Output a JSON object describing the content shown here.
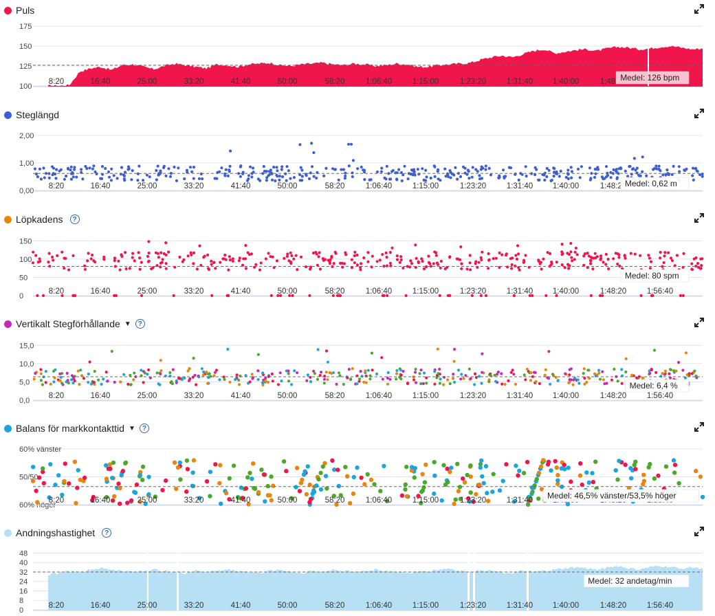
{
  "x_tick_labels": [
    "8:20",
    "16:40",
    "25:00",
    "33:20",
    "41:40",
    "50:00",
    "58:20",
    "1:06:40",
    "1:15:00",
    "1:23:20",
    "1:31:40",
    "1:40:00",
    "1:48:20",
    "1:56:40"
  ],
  "chart_data": [
    {
      "type": "area",
      "title": "Puls",
      "color": "#f0154a",
      "yticks": [
        "175",
        "150",
        "125",
        "100"
      ],
      "yvals": [
        175,
        150,
        125,
        100
      ],
      "ylim": [
        100,
        175
      ],
      "mean": 126,
      "mean_label": "Medel: 126 bpm",
      "series": [
        {
          "values": [
            100,
            100,
            101,
            118,
            122,
            124,
            120,
            126,
            127,
            124,
            121,
            125,
            128,
            126,
            124,
            122,
            127,
            126,
            124,
            127,
            128,
            129,
            126,
            125,
            127,
            128,
            129,
            127,
            126,
            128,
            127,
            125,
            126,
            128,
            127,
            124,
            124,
            126,
            127,
            128,
            129,
            133,
            136,
            138,
            136,
            140,
            144,
            146,
            141,
            143,
            145,
            146,
            144,
            147,
            149,
            148,
            146,
            147,
            149,
            150,
            148,
            146,
            147
          ]
        }
      ]
    },
    {
      "type": "scatter",
      "title": "Steglängd",
      "color": "#3d5fd6",
      "yticks": [
        "2,00",
        "1,00",
        "0,00"
      ],
      "yvals": [
        2,
        1,
        0
      ],
      "ylim": [
        0,
        2.1
      ],
      "mean": 0.62,
      "mean_label": "Medel: 0,62 m"
    },
    {
      "type": "scatter",
      "title": "Löpkadens",
      "color": "#e8850c",
      "point_color": "#f0154a",
      "help": "?",
      "yticks": [
        "150",
        "100",
        "50",
        "0"
      ],
      "yvals": [
        150,
        100,
        50,
        0
      ],
      "ylim": [
        0,
        160
      ],
      "mean": 80,
      "mean_label": "Medel: 80 spm"
    },
    {
      "type": "scatter",
      "title": "Vertikalt Stegförhållande",
      "color": "#c62ab8",
      "help": "?",
      "dropdown": "▼",
      "yticks": [
        "15,0",
        "10,0",
        "5,0",
        "0,0"
      ],
      "yvals": [
        15,
        10,
        5,
        0
      ],
      "ylim": [
        0,
        16
      ],
      "mean": 6.4,
      "mean_label": "Medel: 6,4 %"
    },
    {
      "type": "scatter",
      "title": "Balans för markkontakttid",
      "color": "#1ba4e0",
      "help": "?",
      "dropdown": "▼",
      "yticks": [
        "60% vänster",
        "50/50",
        "60% höger"
      ],
      "yvals": [
        60,
        50,
        40
      ],
      "ylim": [
        40,
        61
      ],
      "mean": 46.5,
      "mean_label": "Medel: 46,5% vänster/53,5% höger"
    },
    {
      "type": "area",
      "title": "Andningshastighet",
      "color": "#b7e0f5",
      "help": "?",
      "yticks": [
        "48",
        "40",
        "32",
        "24",
        "16",
        "8",
        "0"
      ],
      "yvals": [
        48,
        40,
        32,
        24,
        16,
        8,
        0
      ],
      "ylim": [
        0,
        50
      ],
      "mean": 32,
      "mean_label": "Medel: 32 andetag/min",
      "series": [
        {
          "values": [
            30,
            31,
            33,
            32,
            34,
            35,
            34,
            33,
            32,
            33,
            34,
            33,
            32,
            31,
            33,
            32,
            33,
            34,
            33,
            32,
            31,
            33,
            34,
            32,
            31,
            33,
            32,
            34,
            33,
            32,
            33,
            34,
            33,
            32,
            31,
            32,
            33,
            34,
            35,
            33,
            32,
            34,
            33,
            32,
            31,
            33,
            32,
            33,
            34,
            35,
            36,
            35,
            34,
            36,
            37,
            35,
            34,
            36,
            37,
            36,
            35,
            36,
            35
          ]
        }
      ]
    }
  ]
}
